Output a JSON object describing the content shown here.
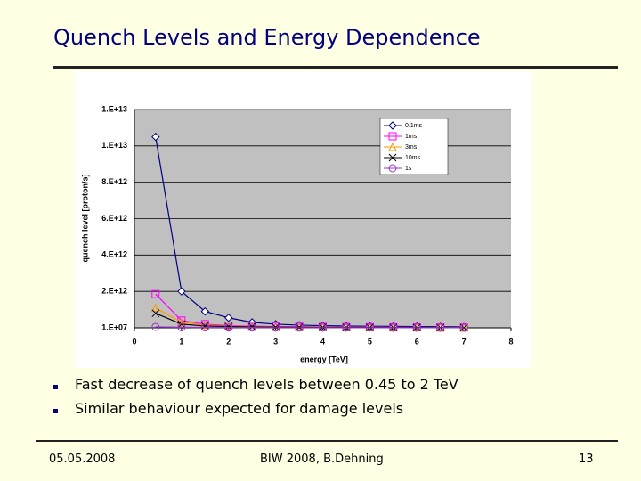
{
  "title": "Quench Levels and Energy Dependence",
  "chart_data": {
    "type": "line",
    "ylabel": "quench level [proton/s]",
    "xlabel": "energy [TeV]",
    "x": [
      0.45,
      1,
      1.5,
      2,
      2.5,
      3,
      3.5,
      4,
      4.5,
      5,
      5.5,
      6,
      6.5,
      7
    ],
    "xlim": [
      0,
      8
    ],
    "xticks": [
      0,
      1,
      2,
      3,
      4,
      5,
      6,
      7,
      8
    ],
    "ylim": [
      10000000.0,
      12000000000000.0
    ],
    "yticks": [
      {
        "value": 10000000.0,
        "label": "1.E+07"
      },
      {
        "value": 2000000000000.0,
        "label": "2.E+12"
      },
      {
        "value": 4000000000000.0,
        "label": "4.E+12"
      },
      {
        "value": 6000000000000.0,
        "label": "6.E+12"
      },
      {
        "value": 8000000000000.0,
        "label": "8.E+12"
      },
      {
        "value": 10000000000000.0,
        "label": "1.E+13"
      },
      {
        "value": 12000000000000.0,
        "label": "1.E+13"
      }
    ],
    "grid": true,
    "series": [
      {
        "name": "0.1ms",
        "color": "#000080",
        "marker": "diamond",
        "values": [
          10500000000000.0,
          2000000000000.0,
          900000000000.0,
          550000000000.0,
          300000000000.0,
          200000000000.0,
          150000000000.0,
          120000000000.0,
          100000000000.0,
          90000000000.0,
          80000000000.0,
          70000000000.0,
          60000000000.0,
          50000000000.0
        ]
      },
      {
        "name": "1ms",
        "color": "#ff00ff",
        "marker": "square",
        "values": [
          1850000000000.0,
          400000000000.0,
          200000000000.0,
          120000000000.0,
          90000000000.0,
          70000000000.0,
          60000000000.0,
          50000000000.0,
          40000000000.0,
          35000000000.0,
          30000000000.0,
          25000000000.0,
          20000000000.0,
          15000000000.0
        ]
      },
      {
        "name": "3ms",
        "color": "#ff9900",
        "marker": "triangle",
        "values": [
          1100000000000.0,
          300000000000.0,
          150000000000.0,
          90000000000.0,
          70000000000.0,
          50000000000.0,
          40000000000.0,
          35000000000.0,
          30000000000.0,
          25000000000.0,
          20000000000.0,
          18000000000.0,
          15000000000.0,
          12000000000.0
        ]
      },
      {
        "name": "10ms",
        "color": "#000000",
        "marker": "cross",
        "values": [
          800000000000.0,
          200000000000.0,
          100000000000.0,
          70000000000.0,
          50000000000.0,
          40000000000.0,
          30000000000.0,
          25000000000.0,
          20000000000.0,
          18000000000.0,
          15000000000.0,
          12000000000.0,
          10000000000.0,
          9000000000.0
        ]
      },
      {
        "name": "1s",
        "color": "#9933cc",
        "marker": "circle",
        "values": [
          50000000000.0,
          30000000000.0,
          20000000000.0,
          15000000000.0,
          12000000000.0,
          10000000000.0,
          9000000000.0,
          8000000000.0,
          7000000000.0,
          6000000000.0,
          5000000000.0,
          4000000000.0,
          3000000000.0,
          2000000000.0
        ]
      }
    ]
  },
  "bullets": [
    "Fast decrease of quench levels between 0.45 to 2 TeV",
    "Similar behaviour expected for damage levels"
  ],
  "footer": {
    "date": "05.05.2008",
    "center": "BIW 2008, B.Dehning",
    "page": "13"
  }
}
